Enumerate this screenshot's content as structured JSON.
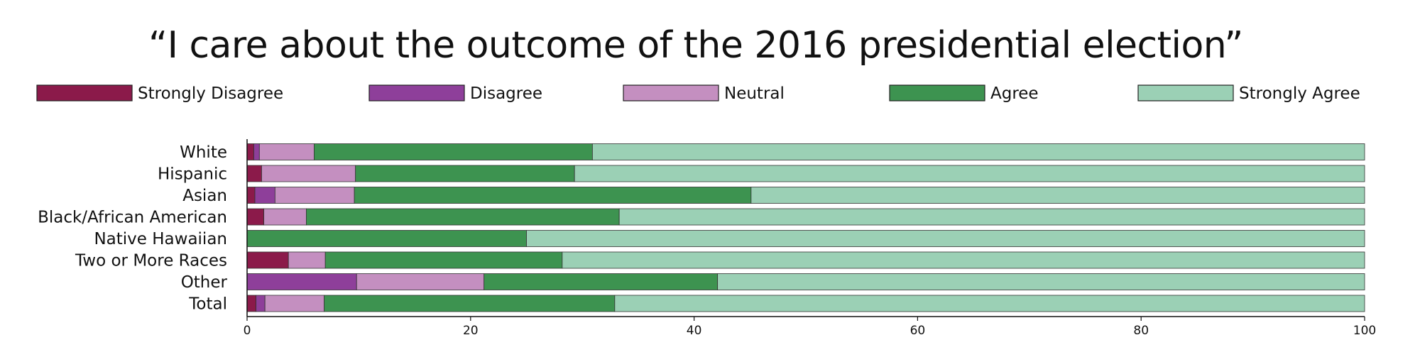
{
  "chart_data": {
    "type": "bar",
    "orientation": "horizontal",
    "stacked": true,
    "title": "“I care about the outcome of the 2016 presidential election”",
    "xlabel": "",
    "ylabel": "",
    "xlim": [
      0,
      100
    ],
    "x_ticks": [
      0,
      20,
      40,
      60,
      80,
      100
    ],
    "grid": false,
    "legend_position": "top",
    "categories": [
      "White",
      "Hispanic",
      "Asian",
      "Black/African American",
      "Native Hawaiian",
      "Two or More Races",
      "Other",
      "Total"
    ],
    "series": [
      {
        "name": "Strongly Disagree",
        "color": "#8b1a4a",
        "values": [
          0.6,
          1.3,
          0.7,
          1.5,
          0,
          3.7,
          0,
          0.8
        ]
      },
      {
        "name": "Disagree",
        "color": "#8e3f9a",
        "values": [
          0.5,
          0,
          1.8,
          0,
          0,
          0,
          9.8,
          0.8
        ]
      },
      {
        "name": "Neutral",
        "color": "#c48fc0",
        "values": [
          4.9,
          8.4,
          7.1,
          3.8,
          0,
          3.3,
          11.4,
          5.3
        ]
      },
      {
        "name": "Agree",
        "color": "#3d9350",
        "values": [
          24.9,
          19.6,
          35.5,
          28,
          25,
          21.2,
          20.9,
          26
        ]
      },
      {
        "name": "Strongly Agree",
        "color": "#9bd0b5",
        "values": [
          69.1,
          70.7,
          54.9,
          66.7,
          75,
          71.8,
          57.9,
          67.1
        ]
      }
    ]
  }
}
